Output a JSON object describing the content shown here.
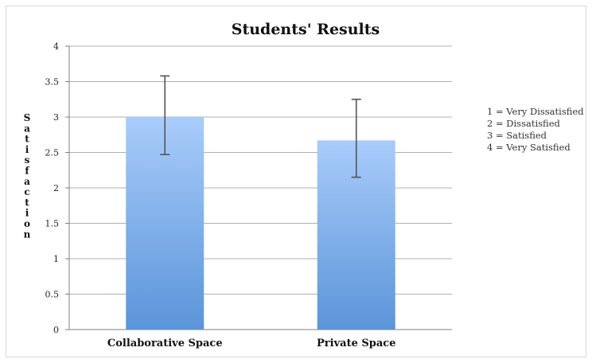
{
  "chart_data": {
    "type": "bar",
    "title": "Students' Results",
    "xlabel": "",
    "ylabel": "Satisfaction",
    "ylim": [
      0,
      4
    ],
    "yticks": [
      0,
      0.5,
      1,
      1.5,
      2,
      2.5,
      3,
      3.5,
      4
    ],
    "ytick_labels": [
      "0",
      "0.5",
      "1",
      "1.5",
      "2",
      "2.5",
      "3",
      "3.5",
      "4"
    ],
    "grid": true,
    "categories": [
      "Collaborative Space",
      "Private Space"
    ],
    "values": [
      3.0,
      2.67
    ],
    "error_bars": [
      {
        "low": 2.47,
        "high": 3.58
      },
      {
        "low": 2.15,
        "high": 3.25
      }
    ],
    "colors": {
      "bar_top": "#a9ccfb",
      "bar_bottom": "#5b95d9",
      "grid": "#b0b0b0",
      "axis": "#808080",
      "error_bar": "#555555"
    },
    "legend_placement": "right",
    "legend": [
      "1 = Very Dissatisfied",
      "2 = Dissatisfied",
      "3 = Satisfied",
      "4 = Very Satisfied"
    ]
  }
}
